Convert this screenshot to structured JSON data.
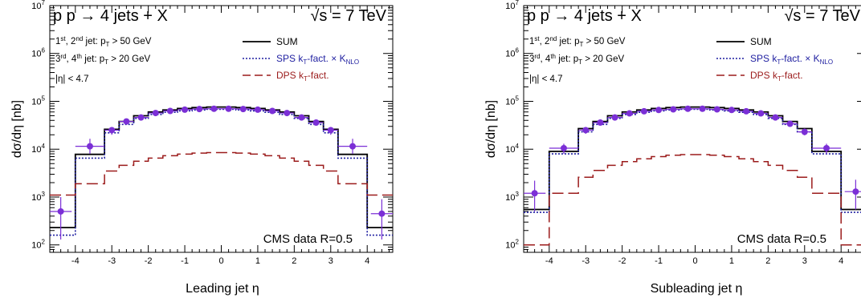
{
  "chart_data": [
    {
      "type": "step-histogram",
      "process": "p p → 4 jets + X",
      "energy": "√s = 7 TeV",
      "cuts": [
        "1st, 2nd jet: pT > 50 GeV",
        "3rd, 4th jet: pT > 20 GeV",
        "|η| < 4.7"
      ],
      "legend": [
        "SUM",
        "SPS kT-fact. × KNLO",
        "DPS kT-fact."
      ],
      "annotation": "CMS data  R=0.5",
      "xlabel": "Leading jet η",
      "ylabel": "dσ/dη   [nb]",
      "xlim": [
        -4.7,
        4.7
      ],
      "ylim": [
        70,
        10000000
      ],
      "yscale": "log",
      "x_ticks": [
        -4,
        -3,
        -2,
        -1,
        0,
        1,
        2,
        3,
        4
      ],
      "y_ticks": [
        "10^2",
        "10^3",
        "10^4",
        "10^5",
        "10^6",
        "10^7"
      ],
      "bin_edges": [
        -4.7,
        -4.0,
        -3.2,
        -2.8,
        -2.4,
        -2.0,
        -1.6,
        -1.2,
        -0.8,
        -0.4,
        0.0,
        0.4,
        0.8,
        1.2,
        1.6,
        2.0,
        2.4,
        2.8,
        3.2,
        4.0,
        4.7
      ],
      "series": [
        {
          "name": "SUM",
          "values": [
            230,
            7800,
            26000,
            38000,
            50000,
            60000,
            66000,
            71000,
            74000,
            76000,
            76000,
            74000,
            71000,
            66000,
            60000,
            50000,
            38000,
            26000,
            7800,
            230
          ]
        },
        {
          "name": "SPS kT-fact. × KNLO",
          "values": [
            160,
            6500,
            22000,
            33000,
            44000,
            53000,
            59000,
            63000,
            66000,
            68000,
            68000,
            66000,
            63000,
            59000,
            53000,
            44000,
            33000,
            22000,
            6500,
            160
          ]
        },
        {
          "name": "DPS kT-fact.",
          "values": [
            1100,
            1900,
            3500,
            4600,
            5600,
            6500,
            7300,
            7900,
            8300,
            8500,
            8500,
            8300,
            7900,
            7300,
            6500,
            5600,
            4600,
            3500,
            1900,
            1100
          ]
        }
      ],
      "data_points": {
        "x": [
          -4.4,
          -3.6,
          -3.0,
          -2.6,
          -2.2,
          -1.8,
          -1.4,
          -1.0,
          -0.6,
          -0.2,
          0.2,
          0.6,
          1.0,
          1.4,
          1.8,
          2.2,
          2.6,
          3.0,
          3.6,
          4.4
        ],
        "y": [
          500,
          11500,
          25000,
          38000,
          46000,
          57000,
          63000,
          67000,
          69000,
          70000,
          70000,
          69000,
          67000,
          63000,
          57000,
          46000,
          36000,
          25000,
          11500,
          450
        ],
        "xerr_lo": [
          0.3,
          0.4,
          0.2,
          0.2,
          0.2,
          0.2,
          0.2,
          0.2,
          0.2,
          0.2,
          0.2,
          0.2,
          0.2,
          0.2,
          0.2,
          0.2,
          0.2,
          0.2,
          0.4,
          0.3
        ],
        "xerr_hi": [
          0.3,
          0.4,
          0.2,
          0.2,
          0.2,
          0.2,
          0.2,
          0.2,
          0.2,
          0.2,
          0.2,
          0.2,
          0.2,
          0.2,
          0.2,
          0.2,
          0.2,
          0.2,
          0.4,
          0.3
        ],
        "ylo": [
          130,
          8000,
          20000,
          33000,
          40000,
          50000,
          56000,
          60000,
          62000,
          63000,
          63000,
          62000,
          60000,
          56000,
          50000,
          40000,
          31000,
          20000,
          8000,
          130
        ],
        "yhi": [
          1000,
          16500,
          29000,
          43000,
          52000,
          63000,
          70000,
          74000,
          76000,
          77000,
          77000,
          76000,
          74000,
          70000,
          63000,
          52000,
          41000,
          29000,
          16500,
          900
        ]
      },
      "colors": {
        "SUM": "#000000",
        "SPS kT-fact. × KNLO": "#1e1ea0",
        "DPS kT-fact.": "#9b1b1b",
        "data": "#7b2fd6"
      }
    },
    {
      "type": "step-histogram",
      "process": "p p → 4 jets + X",
      "energy": "√s = 7 TeV",
      "cuts": [
        "1st, 2nd jet: pT > 50 GeV",
        "3rd, 4th jet: pT > 20 GeV",
        "|η| < 4.7"
      ],
      "legend": [
        "SUM",
        "SPS kT-fact. × KNLO",
        "DPS kT-fact."
      ],
      "annotation": "CMS data  R=0.5",
      "xlabel": "Subleading jet η",
      "ylabel": "dσ/dη   [nb]",
      "xlim": [
        -4.7,
        4.7
      ],
      "ylim": [
        70,
        10000000
      ],
      "yscale": "log",
      "x_ticks": [
        -4,
        -3,
        -2,
        -1,
        0,
        1,
        2,
        3,
        4
      ],
      "y_ticks": [
        "10^2",
        "10^3",
        "10^4",
        "10^5",
        "10^6",
        "10^7"
      ],
      "bin_edges": [
        -4.7,
        -4.0,
        -3.2,
        -2.8,
        -2.4,
        -2.0,
        -1.6,
        -1.2,
        -0.8,
        -0.4,
        0.0,
        0.4,
        0.8,
        1.2,
        1.6,
        2.0,
        2.4,
        2.8,
        3.2,
        4.0,
        4.7
      ],
      "series": [
        {
          "name": "SUM",
          "values": [
            550,
            9000,
            27000,
            38000,
            50000,
            60000,
            66000,
            71000,
            74000,
            76000,
            76000,
            74000,
            71000,
            66000,
            60000,
            50000,
            38000,
            27000,
            9000,
            550
          ]
        },
        {
          "name": "SPS kT-fact. × KNLO",
          "values": [
            480,
            8000,
            23000,
            33000,
            44000,
            53000,
            59000,
            63000,
            66000,
            68000,
            68000,
            66000,
            63000,
            59000,
            53000,
            44000,
            33000,
            23000,
            8000,
            480
          ]
        },
        {
          "name": "DPS kT-fact.",
          "values": [
            100,
            1200,
            2600,
            3600,
            4600,
            5500,
            6300,
            7000,
            7500,
            7700,
            7700,
            7500,
            7000,
            6300,
            5500,
            4600,
            3600,
            2600,
            1200,
            100
          ]
        }
      ],
      "data_points": {
        "x": [
          -4.4,
          -3.6,
          -3.0,
          -2.6,
          -2.2,
          -1.8,
          -1.4,
          -1.0,
          -0.6,
          -0.2,
          0.2,
          0.6,
          1.0,
          1.4,
          1.8,
          2.2,
          2.6,
          3.0,
          3.6,
          4.4
        ],
        "y": [
          1200,
          10500,
          25000,
          36000,
          46000,
          56000,
          62000,
          66000,
          68000,
          70000,
          70000,
          68000,
          66000,
          62000,
          56000,
          46000,
          34000,
          23000,
          10500,
          1300
        ],
        "xerr_lo": [
          0.3,
          0.4,
          0.2,
          0.2,
          0.2,
          0.2,
          0.2,
          0.2,
          0.2,
          0.2,
          0.2,
          0.2,
          0.2,
          0.2,
          0.2,
          0.2,
          0.2,
          0.2,
          0.4,
          0.3
        ],
        "xerr_hi": [
          0.3,
          0.4,
          0.2,
          0.2,
          0.2,
          0.2,
          0.2,
          0.2,
          0.2,
          0.2,
          0.2,
          0.2,
          0.2,
          0.2,
          0.2,
          0.2,
          0.2,
          0.2,
          0.4,
          0.3
        ],
        "ylo": [
          500,
          8000,
          21000,
          32000,
          41000,
          50000,
          56000,
          60000,
          62000,
          64000,
          64000,
          62000,
          60000,
          56000,
          50000,
          41000,
          30000,
          19500,
          8000,
          550
        ],
        "yhi": [
          2200,
          13000,
          29000,
          40000,
          51000,
          62000,
          68000,
          72000,
          74000,
          76000,
          76000,
          74000,
          72000,
          68000,
          62000,
          51000,
          38000,
          27000,
          13000,
          2300
        ]
      },
      "colors": {
        "SUM": "#000000",
        "SPS kT-fact. × KNLO": "#1e1ea0",
        "DPS kT-fact.": "#9b1b1b",
        "data": "#7b2fd6"
      }
    }
  ]
}
